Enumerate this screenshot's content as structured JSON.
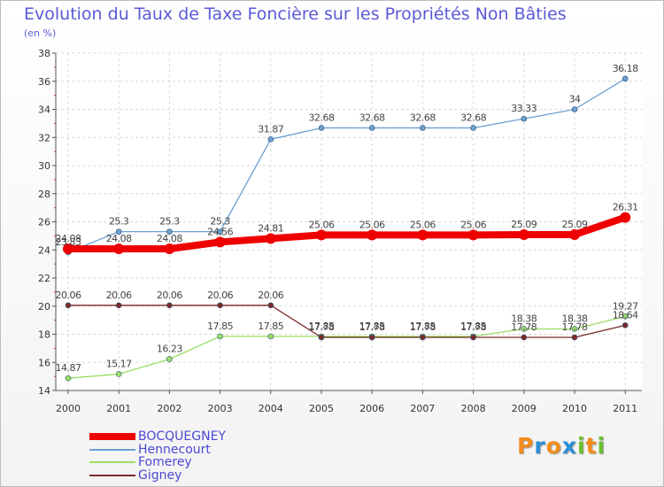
{
  "chart_data": {
    "type": "line",
    "title": "Evolution du Taux de Taxe Foncière sur les Propriétés Non Bâties",
    "subtitle": "(en %)",
    "xlabel": "",
    "ylabel": "",
    "categories": [
      "2000",
      "2001",
      "2002",
      "2003",
      "2004",
      "2005",
      "2006",
      "2007",
      "2008",
      "2009",
      "2010",
      "2011"
    ],
    "ylim": [
      14,
      38
    ],
    "yticks": [
      14,
      16,
      18,
      20,
      22,
      24,
      26,
      28,
      30,
      32,
      34,
      36,
      38
    ],
    "grid": true,
    "legend_position": "bottom-left",
    "series": [
      {
        "name": "BOCQUEGNEY",
        "color": "#ee0000",
        "width": 8,
        "marker": 6,
        "values": [
          24.08,
          24.08,
          24.08,
          24.56,
          24.81,
          25.06,
          25.06,
          25.06,
          25.06,
          25.09,
          25.09,
          26.31
        ],
        "labels": [
          "24.08",
          "24.08",
          "24.08",
          "24.56",
          "24.81",
          "25.06",
          "25.06",
          "25.06",
          "25.06",
          "25.09",
          "25.09",
          "26.31"
        ]
      },
      {
        "name": "Hennecourt",
        "color": "#6c9fd1",
        "width": 1.3,
        "marker": 3,
        "values": [
          23.83,
          25.3,
          25.3,
          25.3,
          31.87,
          32.68,
          32.68,
          32.68,
          32.68,
          33.33,
          34,
          36.18
        ],
        "labels": [
          "23.83",
          "25.3",
          "25.3",
          "25.3",
          "31.87",
          "32.68",
          "32.68",
          "32.68",
          "32.68",
          "33.33",
          "34",
          "36.18"
        ]
      },
      {
        "name": "Fomerey",
        "color": "#99dd66",
        "width": 1.3,
        "marker": 3,
        "values": [
          14.87,
          15.17,
          16.23,
          17.85,
          17.85,
          17.85,
          17.85,
          17.85,
          17.85,
          18.38,
          18.38,
          19.27
        ],
        "labels": [
          "14.87",
          "15.17",
          "16.23",
          "17.85",
          "17.85",
          "17.85",
          "17.85",
          "17.85",
          "17.85",
          "18.38",
          "18.38",
          "19.27"
        ]
      },
      {
        "name": "Gigney",
        "color": "#7a2a2a",
        "width": 1.3,
        "marker": 3,
        "values": [
          20.06,
          20.06,
          20.06,
          20.06,
          20.06,
          17.78,
          17.78,
          17.78,
          17.78,
          17.78,
          17.78,
          18.64
        ],
        "labels": [
          "20.06",
          "20.06",
          "20.06",
          "20.06",
          "20.06",
          "17.78",
          "17.78",
          "17.78",
          "17.78",
          "17.78",
          "17.78",
          "18.64"
        ]
      }
    ]
  },
  "logo": {
    "text": "Proxiti",
    "letters": [
      {
        "ch": "P",
        "color": "#f28c1c"
      },
      {
        "ch": "r",
        "color": "#2a8fd6"
      },
      {
        "ch": "o",
        "color": "#f28c1c"
      },
      {
        "ch": "x",
        "color": "#2a8fd6"
      },
      {
        "ch": "i",
        "color": "#6cbf2a"
      },
      {
        "ch": "t",
        "color": "#f28c1c"
      },
      {
        "ch": "i",
        "color": "#6cbf2a"
      }
    ]
  }
}
